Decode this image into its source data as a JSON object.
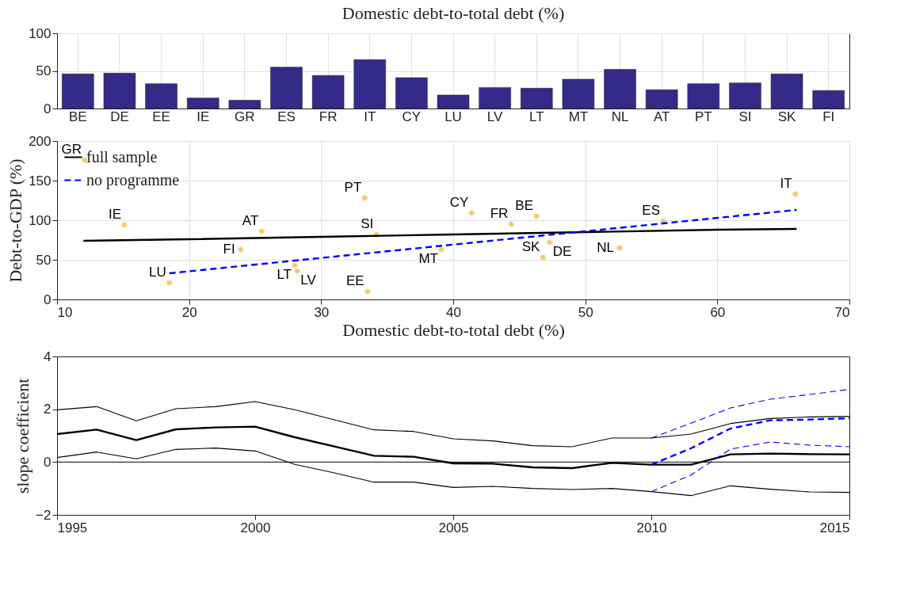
{
  "chart_data": [
    {
      "type": "bar",
      "title": "Domestic debt-to-total debt (%)",
      "categories": [
        "BE",
        "DE",
        "EE",
        "IE",
        "GR",
        "ES",
        "FR",
        "IT",
        "CY",
        "LU",
        "LV",
        "LT",
        "MT",
        "NL",
        "AT",
        "PT",
        "SI",
        "SK",
        "FI"
      ],
      "values": [
        46,
        47,
        33,
        14,
        11,
        55,
        44,
        65,
        41,
        18,
        28,
        27,
        39,
        52,
        25,
        33,
        34,
        46,
        24
      ],
      "color": "#352a87",
      "ylim": [
        0,
        100
      ],
      "yticks": [
        0,
        50,
        100
      ],
      "grid": true
    },
    {
      "type": "scatter",
      "xlabel": "Domestic debt-to-total debt (%)",
      "ylabel": "Debt-to-GDP (%)",
      "xlim": [
        10,
        70
      ],
      "xticks": [
        10,
        20,
        30,
        40,
        50,
        60,
        70
      ],
      "ylim": [
        0,
        200
      ],
      "yticks": [
        0,
        50,
        100,
        150,
        200
      ],
      "grid": true,
      "legend": "top left",
      "series": [
        {
          "type": "scatter",
          "color": "#edb120",
          "marker": "cross",
          "x": [
            12.1,
            15.1,
            18.5,
            23.9,
            25.5,
            28.0,
            28.2,
            33.3,
            34.2,
            33.5,
            39.1,
            41.4,
            44.4,
            46.3,
            46.8,
            47.3,
            52.6,
            55.9,
            65.9
          ],
          "values": [
            176,
            94,
            21,
            63,
            86,
            43,
            36,
            128,
            82,
            10,
            63,
            109,
            95,
            105,
            53,
            72,
            65,
            99,
            133
          ]
        },
        {
          "type": "line",
          "name": "full sample",
          "color": "#000000",
          "line_style": "solid",
          "x": [
            12,
            20,
            30,
            40,
            50,
            60,
            66
          ],
          "values": [
            74,
            76,
            79,
            82,
            85,
            88,
            89
          ]
        },
        {
          "type": "line",
          "name": "no programme",
          "color": "#0000ff",
          "line_style": "dashed",
          "x": [
            18.5,
            66
          ],
          "values": [
            33,
            113
          ]
        }
      ],
      "annotations": [
        {
          "text": "GR",
          "x": 12.1,
          "y": 176
        },
        {
          "text": "IE",
          "x": 15.1,
          "y": 94
        },
        {
          "text": "LU",
          "x": 18.5,
          "y": 21
        },
        {
          "text": "FI",
          "x": 23.9,
          "y": 63
        },
        {
          "text": "AT",
          "x": 25.5,
          "y": 86
        },
        {
          "text": "LT",
          "x": 28.0,
          "y": 43
        },
        {
          "text": "LV",
          "x": 28.2,
          "y": 36
        },
        {
          "text": "PT",
          "x": 33.3,
          "y": 128
        },
        {
          "text": "SI",
          "x": 34.2,
          "y": 82
        },
        {
          "text": "EE",
          "x": 33.5,
          "y": 10
        },
        {
          "text": "MT",
          "x": 39.1,
          "y": 63
        },
        {
          "text": "CY",
          "x": 41.4,
          "y": 109
        },
        {
          "text": "FR",
          "x": 44.4,
          "y": 95
        },
        {
          "text": "BE",
          "x": 46.3,
          "y": 105
        },
        {
          "text": "SK",
          "x": 46.8,
          "y": 53
        },
        {
          "text": "DE",
          "x": 47.3,
          "y": 72
        },
        {
          "text": "NL",
          "x": 52.6,
          "y": 65
        },
        {
          "text": "ES",
          "x": 55.9,
          "y": 99
        },
        {
          "text": "IT",
          "x": 65.9,
          "y": 133
        }
      ]
    },
    {
      "type": "line",
      "ylabel": "slope coefficient",
      "xlim": [
        1995,
        2015
      ],
      "xticks": [
        1995,
        2000,
        2005,
        2010,
        2015
      ],
      "ylim": [
        -2,
        4
      ],
      "yticks": [
        -2,
        0,
        2,
        4
      ],
      "grid": false,
      "ref_lines": [
        {
          "axis": "y",
          "value": 0,
          "color": "#000000"
        }
      ],
      "series": [
        {
          "color": "#000000",
          "line_style": "solid",
          "x": [
            1995,
            1996,
            1997,
            1998,
            1999,
            2000,
            2001,
            2002,
            2003,
            2004,
            2005,
            2006,
            2007,
            2008,
            2009,
            2010,
            2011,
            2012,
            2013,
            2014,
            2015
          ],
          "values": [
            1.06,
            1.23,
            0.83,
            1.24,
            1.31,
            1.34,
            0.94,
            0.59,
            0.24,
            0.2,
            -0.05,
            -0.06,
            -0.2,
            -0.23,
            -0.03,
            -0.1,
            -0.1,
            0.29,
            0.32,
            0.3,
            0.29
          ]
        },
        {
          "color": "#000000",
          "line_style": "solid",
          "x": [
            1995,
            1996,
            1997,
            1998,
            1999,
            2000,
            2001,
            2002,
            2003,
            2004,
            2005,
            2006,
            2007,
            2008,
            2009,
            2010,
            2011,
            2012,
            2013,
            2014,
            2015
          ],
          "values": [
            1.98,
            2.1,
            1.56,
            2.02,
            2.1,
            2.29,
            1.98,
            1.6,
            1.22,
            1.16,
            0.88,
            0.8,
            0.62,
            0.58,
            0.91,
            0.91,
            1.06,
            1.46,
            1.65,
            1.71,
            1.73
          ]
        },
        {
          "color": "#000000",
          "line_style": "solid",
          "x": [
            1995,
            1996,
            1997,
            1998,
            1999,
            2000,
            2001,
            2002,
            2003,
            2004,
            2005,
            2006,
            2007,
            2008,
            2009,
            2010,
            2011,
            2012,
            2013,
            2014,
            2015
          ],
          "values": [
            0.17,
            0.38,
            0.12,
            0.48,
            0.53,
            0.42,
            -0.09,
            -0.41,
            -0.76,
            -0.76,
            -0.96,
            -0.92,
            -1.0,
            -1.04,
            -1.0,
            -1.12,
            -1.27,
            -0.9,
            -1.03,
            -1.13,
            -1.15
          ]
        },
        {
          "color": "#0000ff",
          "line_style": "dashed",
          "x": [
            2010,
            2011,
            2012,
            2013,
            2014,
            2015
          ],
          "values": [
            -0.1,
            0.52,
            1.27,
            1.58,
            1.61,
            1.66
          ]
        },
        {
          "color": "#0000ff",
          "line_style": "dashed",
          "x": [
            2010,
            2011,
            2012,
            2013,
            2014,
            2015
          ],
          "values": [
            0.91,
            1.47,
            2.05,
            2.38,
            2.56,
            2.75
          ]
        },
        {
          "color": "#0000ff",
          "line_style": "dashed",
          "x": [
            2010,
            2011,
            2012,
            2013,
            2014,
            2015
          ],
          "values": [
            -1.12,
            -0.49,
            0.49,
            0.76,
            0.64,
            0.58
          ]
        }
      ]
    }
  ]
}
